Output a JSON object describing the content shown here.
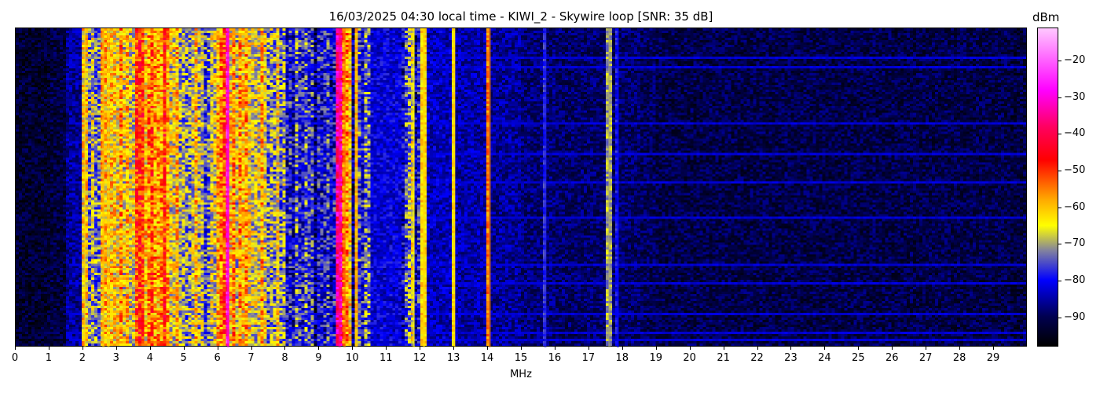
{
  "chart_data": {
    "type": "heatmap",
    "title": "16/03/2025 04:30 local time - KIWI_2 - Skywire loop [SNR: 35 dB]",
    "xlabel": "MHz",
    "ylabel": "",
    "xlim": [
      0,
      30
    ],
    "xticks": [
      "0",
      "1",
      "2",
      "3",
      "4",
      "5",
      "6",
      "7",
      "8",
      "9",
      "10",
      "11",
      "12",
      "13",
      "14",
      "15",
      "16",
      "17",
      "18",
      "19",
      "20",
      "21",
      "22",
      "23",
      "24",
      "25",
      "26",
      "27",
      "28",
      "29"
    ],
    "colorbar": {
      "label": "dBm",
      "range": [
        -98,
        -11
      ],
      "ticks": [
        "−20",
        "−30",
        "−40",
        "−50",
        "−60",
        "−70",
        "−80",
        "−90"
      ],
      "tick_values": [
        -20,
        -30,
        -40,
        -50,
        -60,
        -70,
        -80,
        -90
      ],
      "colormap": [
        {
          "value": -98,
          "color": "#000000"
        },
        {
          "value": -90,
          "color": "#000050"
        },
        {
          "value": -80,
          "color": "#0000ff"
        },
        {
          "value": -72,
          "color": "#8080a0"
        },
        {
          "value": -65,
          "color": "#ffff00"
        },
        {
          "value": -58,
          "color": "#ffaa00"
        },
        {
          "value": -47,
          "color": "#ff0000"
        },
        {
          "value": -38,
          "color": "#ff0060"
        },
        {
          "value": -28,
          "color": "#ff00ff"
        },
        {
          "value": -11,
          "color": "#ffc8ff"
        }
      ]
    },
    "band_mean_dbm": {
      "bin_width_mhz": 0.5,
      "start_mhz": 0,
      "values": [
        -93,
        -93,
        -92,
        -86,
        -76,
        -66,
        -61,
        -55,
        -55,
        -64,
        -68,
        -72,
        -56,
        -60,
        -65,
        -66,
        -78,
        -80,
        -80,
        -63,
        -78,
        -82,
        -82,
        -80,
        -84,
        -84,
        -85,
        -85,
        -86,
        -86,
        -88,
        -88,
        -89,
        -89,
        -89,
        -89,
        -89,
        -90,
        -91,
        -91,
        -91,
        -91,
        -91,
        -91,
        -91,
        -91,
        -91,
        -91,
        -91,
        -91,
        -91,
        -91,
        -91,
        -91,
        -91,
        -91,
        -91,
        -91,
        -91,
        -92
      ]
    },
    "narrowband_signals": [
      {
        "mhz": 2.05,
        "dbm": -62
      },
      {
        "mhz": 2.6,
        "dbm": -60
      },
      {
        "mhz": 2.75,
        "dbm": -62
      },
      {
        "mhz": 6.3,
        "dbm": -30
      },
      {
        "mhz": 9.6,
        "dbm": -35
      },
      {
        "mhz": 9.75,
        "dbm": -55
      },
      {
        "mhz": 10.1,
        "dbm": -60
      },
      {
        "mhz": 11.8,
        "dbm": -65
      },
      {
        "mhz": 12.1,
        "dbm": -62
      },
      {
        "mhz": 13.0,
        "dbm": -62
      },
      {
        "mhz": 14.05,
        "dbm": -55
      },
      {
        "mhz": 15.7,
        "dbm": -78
      },
      {
        "mhz": 17.6,
        "dbm": -70
      },
      {
        "mhz": 17.85,
        "dbm": -80
      }
    ]
  }
}
